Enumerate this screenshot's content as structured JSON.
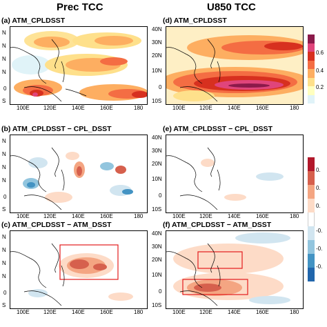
{
  "columns": [
    "Prec TCC",
    "U850 TCC"
  ],
  "panels": [
    {
      "id": "a",
      "title": "(a) ATM_CPLDSST"
    },
    {
      "id": "b",
      "title": "(b) ATM_CPLDSST − CPL_DSST"
    },
    {
      "id": "c",
      "title": "(c) ATM_CPLDSST − ATM_DSST"
    },
    {
      "id": "d",
      "title": "(d) ATM_CPLDSST"
    },
    {
      "id": "e",
      "title": "(e) ATM_CPLDSST − CPL_DSST"
    },
    {
      "id": "f",
      "title": "(f) ATM_CPLDSST − ATM_DSST"
    }
  ],
  "lon_ticks": [
    "100E",
    "120E",
    "140E",
    "160E",
    "180"
  ],
  "lat_ticks_left": [
    "N",
    "N",
    "N",
    "N",
    "0",
    "S"
  ],
  "lat_ticks_right": [
    "40N",
    "30N",
    "20N",
    "10N",
    "0",
    "10S"
  ],
  "colorbar_top": {
    "labels": [
      "0.6",
      "0.4",
      "0.2"
    ],
    "colors": [
      "#8b1a4a",
      "#e0457b",
      "#d7301f",
      "#f46d43",
      "#fdae61",
      "#fee08b",
      "#ffffbf",
      "#e0f3f8"
    ]
  },
  "colorbar_bottom": {
    "labels": [
      "0.",
      "0.",
      "0.",
      "-0.",
      "-0.",
      "-0."
    ],
    "colors": [
      "#b2182b",
      "#d6604d",
      "#f4a582",
      "#fddbc7",
      "#ffffff",
      "#d1e5f0",
      "#92c5de",
      "#4393c3",
      "#2166ac"
    ]
  }
}
